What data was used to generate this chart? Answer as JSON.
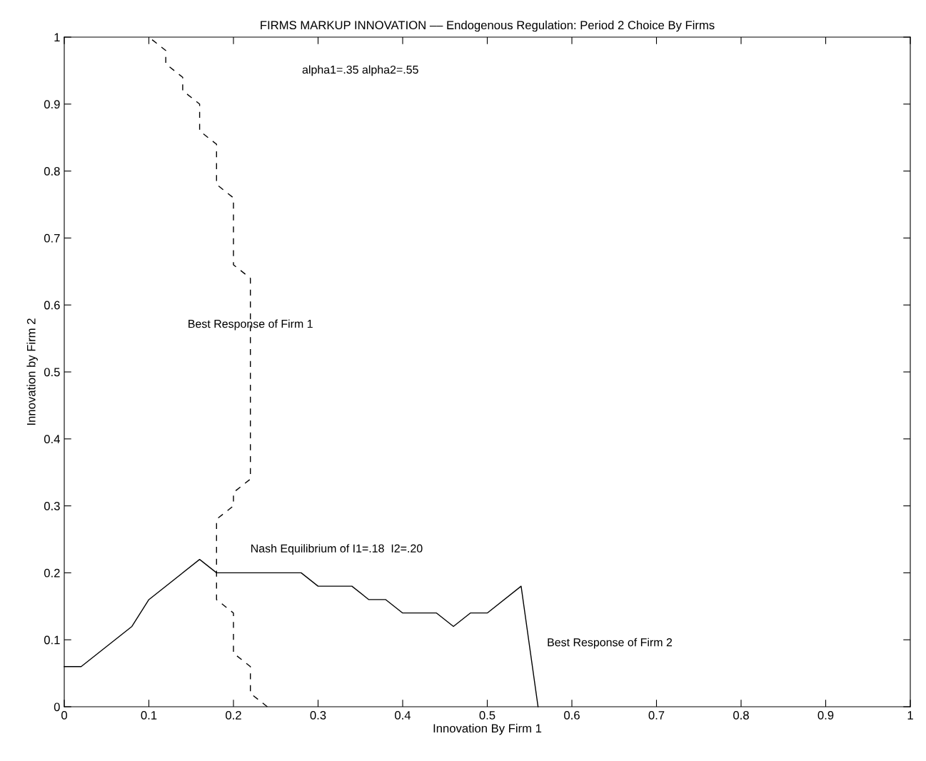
{
  "chart_data": {
    "type": "line",
    "title": "FIRMS MARKUP INNOVATION –– Endogenous Regulation: Period 2 Choice By Firms",
    "xlabel": "Innovation By Firm 1",
    "ylabel": "Innovation by Firm 2",
    "series": [
      {
        "name": "Best Response of Firm 1",
        "color": "#000000",
        "line_style": "dashed",
        "x": [
          0.24,
          0.22,
          0.22,
          0.2,
          0.2,
          0.18,
          0.18,
          0.2,
          0.2,
          0.22,
          0.22,
          0.2,
          0.2,
          0.18,
          0.18,
          0.16,
          0.16,
          0.14,
          0.14,
          0.12,
          0.12,
          0.1
        ],
        "values": [
          0,
          0.02,
          0.06,
          0.08,
          0.14,
          0.16,
          0.28,
          0.3,
          0.32,
          0.34,
          0.64,
          0.66,
          0.76,
          0.78,
          0.84,
          0.86,
          0.9,
          0.92,
          0.94,
          0.96,
          0.98,
          1.0
        ]
      },
      {
        "name": "Best Response of Firm 2",
        "color": "#000000",
        "line_style": "solid",
        "x": [
          0,
          0.02,
          0.08,
          0.1,
          0.16,
          0.18,
          0.28,
          0.3,
          0.34,
          0.36,
          0.38,
          0.4,
          0.44,
          0.46,
          0.48,
          0.5,
          0.54,
          0.56
        ],
        "values": [
          0.06,
          0.06,
          0.12,
          0.16,
          0.22,
          0.2,
          0.2,
          0.18,
          0.18,
          0.16,
          0.16,
          0.14,
          0.14,
          0.12,
          0.14,
          0.14,
          0.18,
          0
        ]
      }
    ],
    "annotations": [
      "alpha1=.35 alpha2=.55",
      "Nash Equilibrium of I1=.18  I2=.20"
    ],
    "xlim": [
      0,
      1
    ],
    "ylim": [
      0,
      1
    ],
    "xticks": [
      0,
      0.1,
      0.2,
      0.3,
      0.4,
      0.5,
      0.6,
      0.7,
      0.8,
      0.9,
      1
    ],
    "yticks": [
      0,
      0.1,
      0.2,
      0.3,
      0.4,
      0.5,
      0.6,
      0.7,
      0.8,
      0.9,
      1
    ],
    "grid": false,
    "legend": false,
    "marker": "none"
  }
}
